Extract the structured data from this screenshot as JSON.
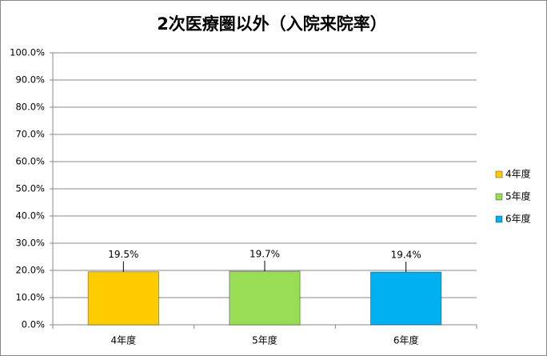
{
  "chart_data": {
    "type": "bar",
    "title": "2次医療圏以外（入院来院率）",
    "categories": [
      "4年度",
      "5年度",
      "6年度"
    ],
    "values": [
      19.5,
      19.7,
      19.4
    ],
    "value_labels": [
      "19.5%",
      "19.7%",
      "19.4%"
    ],
    "colors": [
      "#ffcc00",
      "#99dd55",
      "#00b0f0"
    ],
    "ylim": [
      0,
      100
    ],
    "yticks": [
      {
        "value": 0,
        "label": "0.0%"
      },
      {
        "value": 10,
        "label": "10.0%"
      },
      {
        "value": 20,
        "label": "20.0%"
      },
      {
        "value": 30,
        "label": "30.0%"
      },
      {
        "value": 40,
        "label": "40.0%"
      },
      {
        "value": 50,
        "label": "50.0%"
      },
      {
        "value": 60,
        "label": "60.0%"
      },
      {
        "value": 70,
        "label": "70.0%"
      },
      {
        "value": 80,
        "label": "80.0%"
      },
      {
        "value": 90,
        "label": "90.0%"
      },
      {
        "value": 100,
        "label": "100.0%"
      }
    ],
    "grid": true,
    "legend": "right"
  }
}
